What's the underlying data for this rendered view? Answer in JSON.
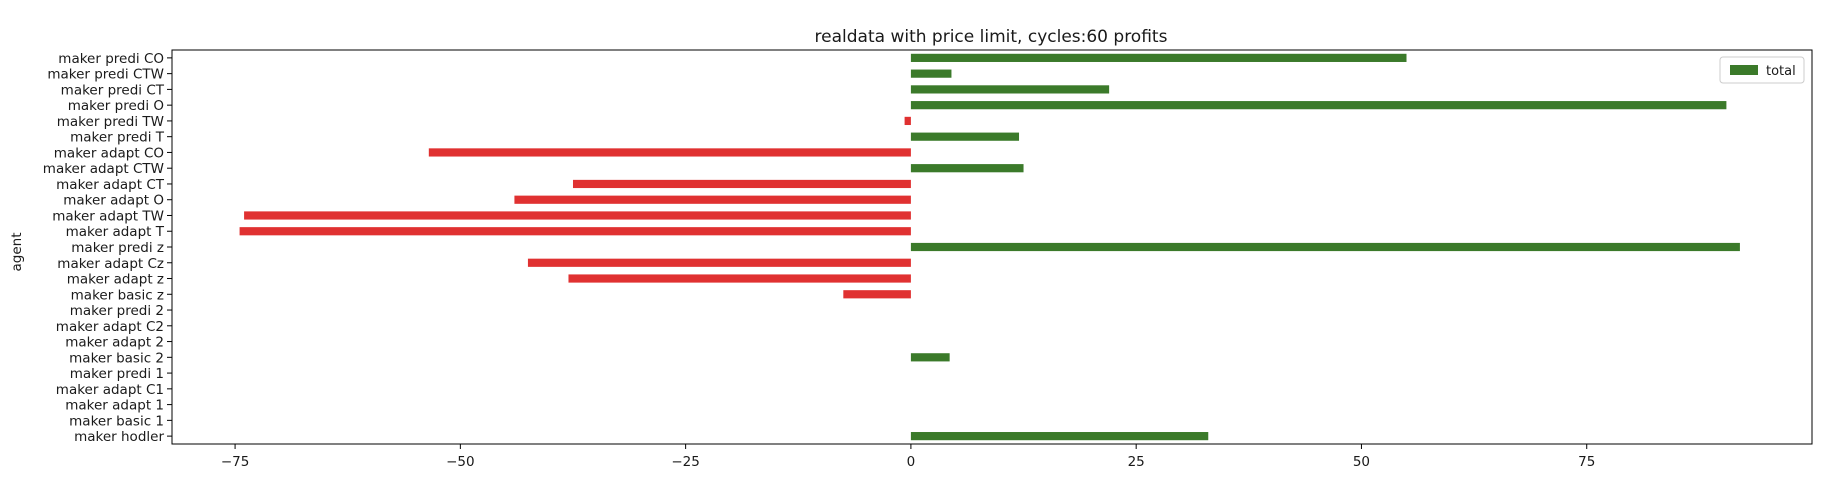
{
  "chart_data": {
    "type": "bar",
    "orientation": "horizontal",
    "title": "realdata with price limit, cycles:60 profits",
    "xlabel": "",
    "ylabel": "agent",
    "xlim": [
      -82,
      100
    ],
    "xticks": [
      -75,
      -50,
      -25,
      0,
      25,
      50,
      75
    ],
    "grid": false,
    "legend_position": "top-right",
    "positive_color": "#3b7a2a",
    "negative_color": "#e03131",
    "categories": [
      "maker predi CO",
      "maker predi CTW",
      "maker predi CT",
      "maker predi O",
      "maker predi TW",
      "maker predi T",
      "maker adapt CO",
      "maker adapt CTW",
      "maker adapt CT",
      "maker adapt O",
      "maker adapt TW",
      "maker adapt T",
      "maker predi z",
      "maker adapt Cz",
      "maker adapt z",
      "maker basic z",
      "maker predi 2",
      "maker adapt C2",
      "maker adapt 2",
      "maker basic 2",
      "maker predi 1",
      "maker adapt C1",
      "maker adapt 1",
      "maker basic 1",
      "maker hodler"
    ],
    "series": [
      {
        "name": "total",
        "values": [
          55,
          4.5,
          22,
          90.5,
          -0.7,
          12,
          -53.5,
          12.5,
          -37.5,
          -44,
          -74,
          -74.5,
          92,
          -42.5,
          -38,
          -7.5,
          0,
          0,
          0,
          4.3,
          0,
          0,
          0,
          0,
          33
        ]
      }
    ]
  }
}
